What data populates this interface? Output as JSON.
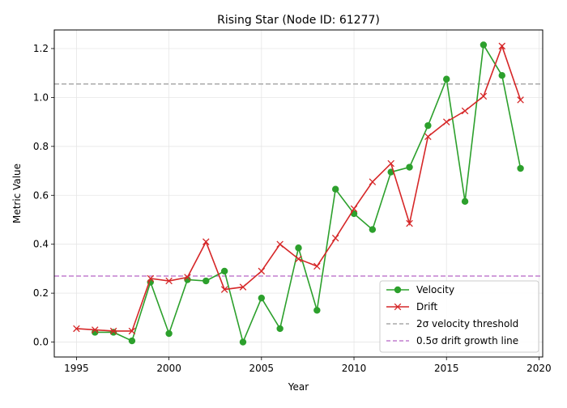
{
  "chart_data": {
    "type": "line",
    "title": "Rising Star (Node ID: 61277)",
    "xlabel": "Year",
    "ylabel": "Metric Value",
    "xlim": [
      1993.8,
      2020.2
    ],
    "ylim": [
      -0.061,
      1.276
    ],
    "xticks": [
      1995,
      2000,
      2005,
      2010,
      2015,
      2020
    ],
    "yticks": [
      0.0,
      0.2,
      0.4,
      0.6,
      0.8,
      1.0,
      1.2
    ],
    "grid": true,
    "legend_position": "lower-right",
    "series": [
      {
        "name": "Velocity",
        "color": "#2ca02c",
        "marker": "circle",
        "points": [
          [
            1996,
            0.04
          ],
          [
            1997,
            0.04
          ],
          [
            1998,
            0.005
          ],
          [
            1999,
            0.245
          ],
          [
            2000,
            0.035
          ],
          [
            2001,
            0.255
          ],
          [
            2002,
            0.25
          ],
          [
            2003,
            0.29
          ],
          [
            2004,
            0.0
          ],
          [
            2005,
            0.18
          ],
          [
            2006,
            0.055
          ],
          [
            2007,
            0.385
          ],
          [
            2008,
            0.13
          ],
          [
            2009,
            0.625
          ],
          [
            2010,
            0.525
          ],
          [
            2011,
            0.46
          ],
          [
            2012,
            0.695
          ],
          [
            2013,
            0.715
          ],
          [
            2014,
            0.885
          ],
          [
            2015,
            1.075
          ],
          [
            2016,
            0.575
          ],
          [
            2017,
            1.215
          ],
          [
            2018,
            1.09
          ],
          [
            2019,
            0.71
          ]
        ]
      },
      {
        "name": "Drift",
        "color": "#d62728",
        "marker": "x",
        "points": [
          [
            1995,
            0.055
          ],
          [
            1996,
            0.05
          ],
          [
            1997,
            0.045
          ],
          [
            1998,
            0.045
          ],
          [
            1999,
            0.26
          ],
          [
            2000,
            0.25
          ],
          [
            2001,
            0.265
          ],
          [
            2002,
            0.41
          ],
          [
            2003,
            0.215
          ],
          [
            2004,
            0.225
          ],
          [
            2005,
            0.29
          ],
          [
            2006,
            0.4
          ],
          [
            2007,
            0.34
          ],
          [
            2008,
            0.31
          ],
          [
            2009,
            0.425
          ],
          [
            2010,
            0.545
          ],
          [
            2011,
            0.655
          ],
          [
            2012,
            0.73
          ],
          [
            2013,
            0.485
          ],
          [
            2014,
            0.84
          ],
          [
            2015,
            0.9
          ],
          [
            2016,
            0.945
          ],
          [
            2017,
            1.005
          ],
          [
            2018,
            1.21
          ],
          [
            2019,
            0.99
          ]
        ]
      }
    ],
    "reference_lines": [
      {
        "name": "2σ velocity threshold",
        "y": 1.055,
        "color": "#a9a9a9",
        "style": "dashed"
      },
      {
        "name": "0.5σ drift growth line",
        "y": 0.27,
        "color": "#c27fcf",
        "style": "dashed"
      }
    ]
  }
}
